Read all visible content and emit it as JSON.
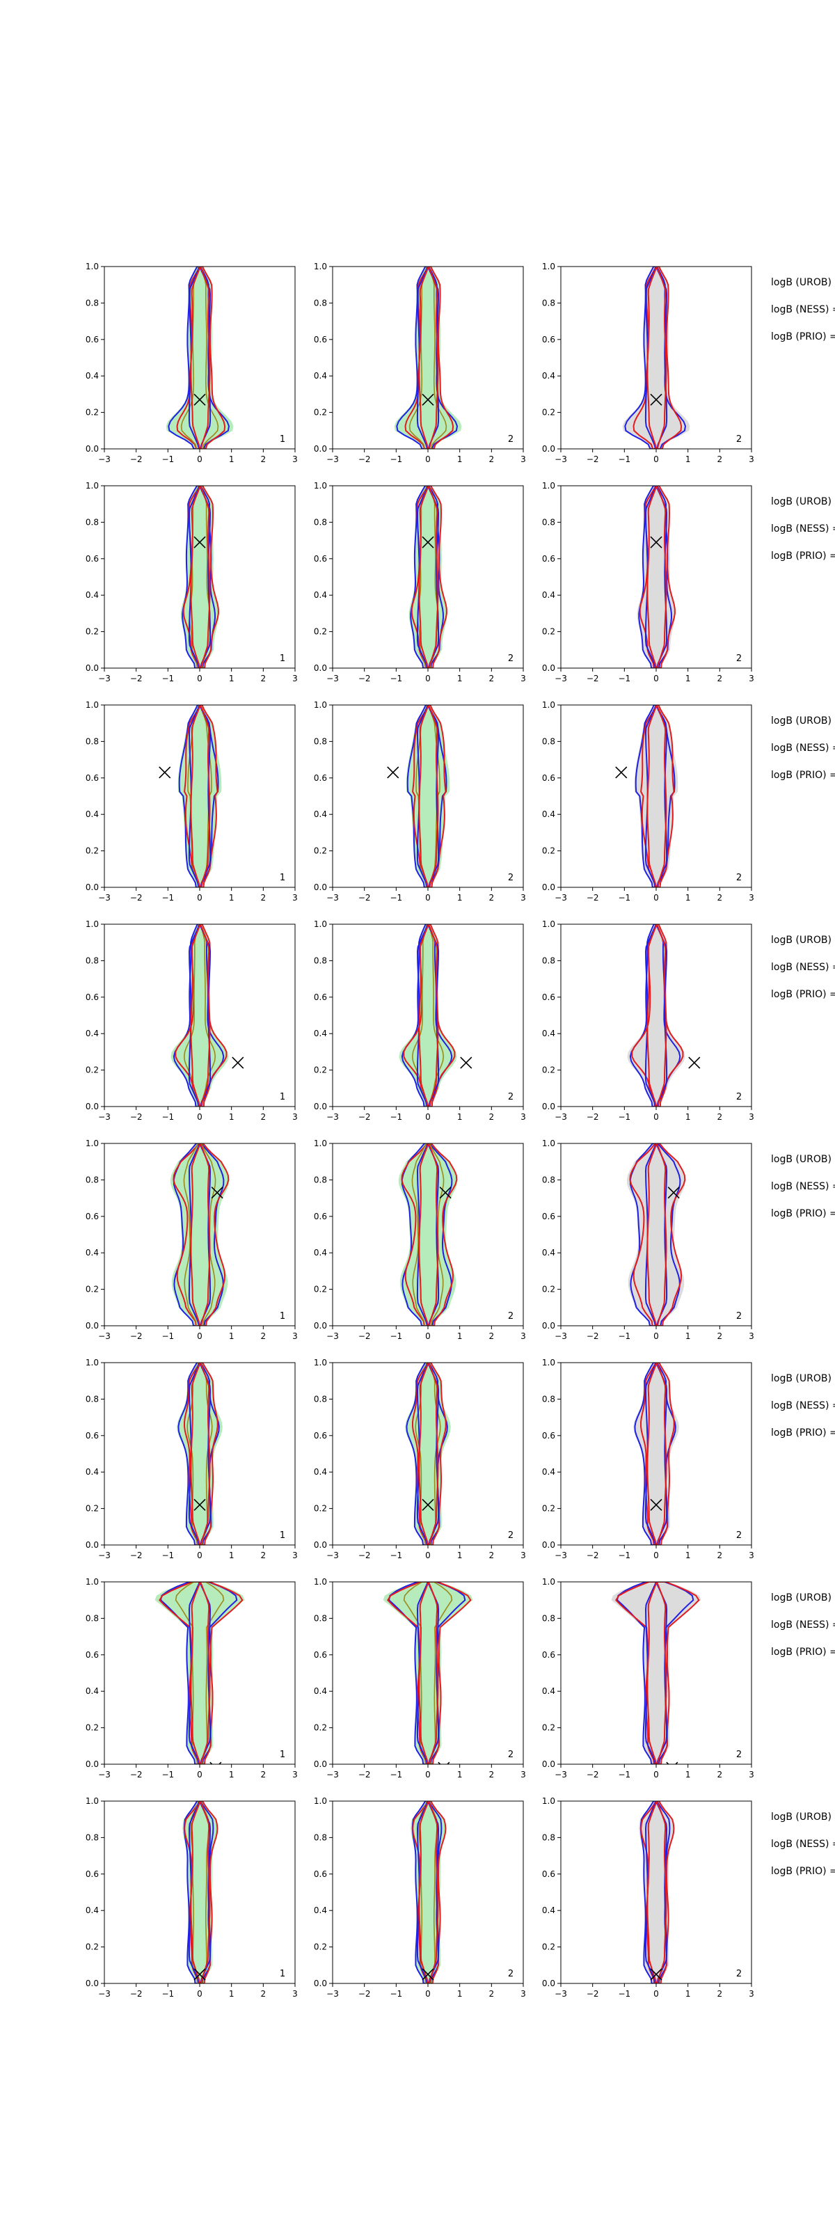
{
  "chart_data": {
    "type": "contour",
    "grid": false,
    "colors": {
      "blue_contour": "#1f1fe6",
      "red_contour": "#e41a1c",
      "olive_contour": "#9a8a1a",
      "green_fill": "#b6ebbb",
      "grey_fill": "#dcdcdc",
      "marker": "#000000"
    },
    "x_axis": {
      "range": [
        -3,
        3
      ],
      "ticks": [
        -3,
        -2,
        -1,
        0,
        1,
        2,
        3
      ],
      "tick_labels": [
        "−3",
        "−2",
        "−1",
        "0",
        "1",
        "2",
        "3"
      ]
    },
    "y_axis": {
      "range": [
        0.0,
        1.0
      ],
      "ticks": [
        0.0,
        0.2,
        0.4,
        0.6,
        0.8,
        1.0
      ],
      "tick_labels": [
        "0.0",
        "0.2",
        "0.4",
        "0.6",
        "0.8",
        "1.0"
      ]
    },
    "column_backgrounds": [
      "green",
      "green",
      "grey"
    ],
    "column_numbers": [
      "1",
      "2",
      "2"
    ],
    "bayes_labels": [
      "logB (UROB) =",
      "logB (NESS) =",
      "logB (PRIO) ="
    ],
    "rows": [
      {
        "marker": {
          "x": 0.0,
          "y": 0.27
        },
        "width": 0.55,
        "shape": "bulge-low",
        "bulge_y": 0.12,
        "bulge_w": 1.6
      },
      {
        "marker": {
          "x": 0.0,
          "y": 0.69
        },
        "width": 0.6,
        "shape": "column",
        "bulge_y": 0.3,
        "bulge_w": 0.9
      },
      {
        "marker": {
          "x": -1.1,
          "y": 0.63
        },
        "width": 0.55,
        "shape": "tapered",
        "bulge_y": 0.7,
        "bulge_w": 0.9
      },
      {
        "marker": {
          "x": 1.2,
          "y": 0.24
        },
        "width": 0.45,
        "shape": "wide-mid",
        "bulge_y": 0.28,
        "bulge_w": 1.8
      },
      {
        "marker": {
          "x": 0.55,
          "y": 0.73
        },
        "width": 0.7,
        "shape": "double",
        "bulge_y": 0.8,
        "bulge_w": 1.5
      },
      {
        "marker": {
          "x": 0.0,
          "y": 0.22
        },
        "width": 0.6,
        "shape": "column",
        "bulge_y": 0.65,
        "bulge_w": 1.0
      },
      {
        "marker": {
          "x": 0.5,
          "y": -0.02
        },
        "width": 0.7,
        "shape": "fan-top",
        "bulge_y": 0.9,
        "bulge_w": 2.2
      },
      {
        "marker": {
          "x": 0.0,
          "y": 0.05
        },
        "width": 0.55,
        "shape": "column",
        "bulge_y": 0.85,
        "bulge_w": 0.9
      }
    ]
  }
}
